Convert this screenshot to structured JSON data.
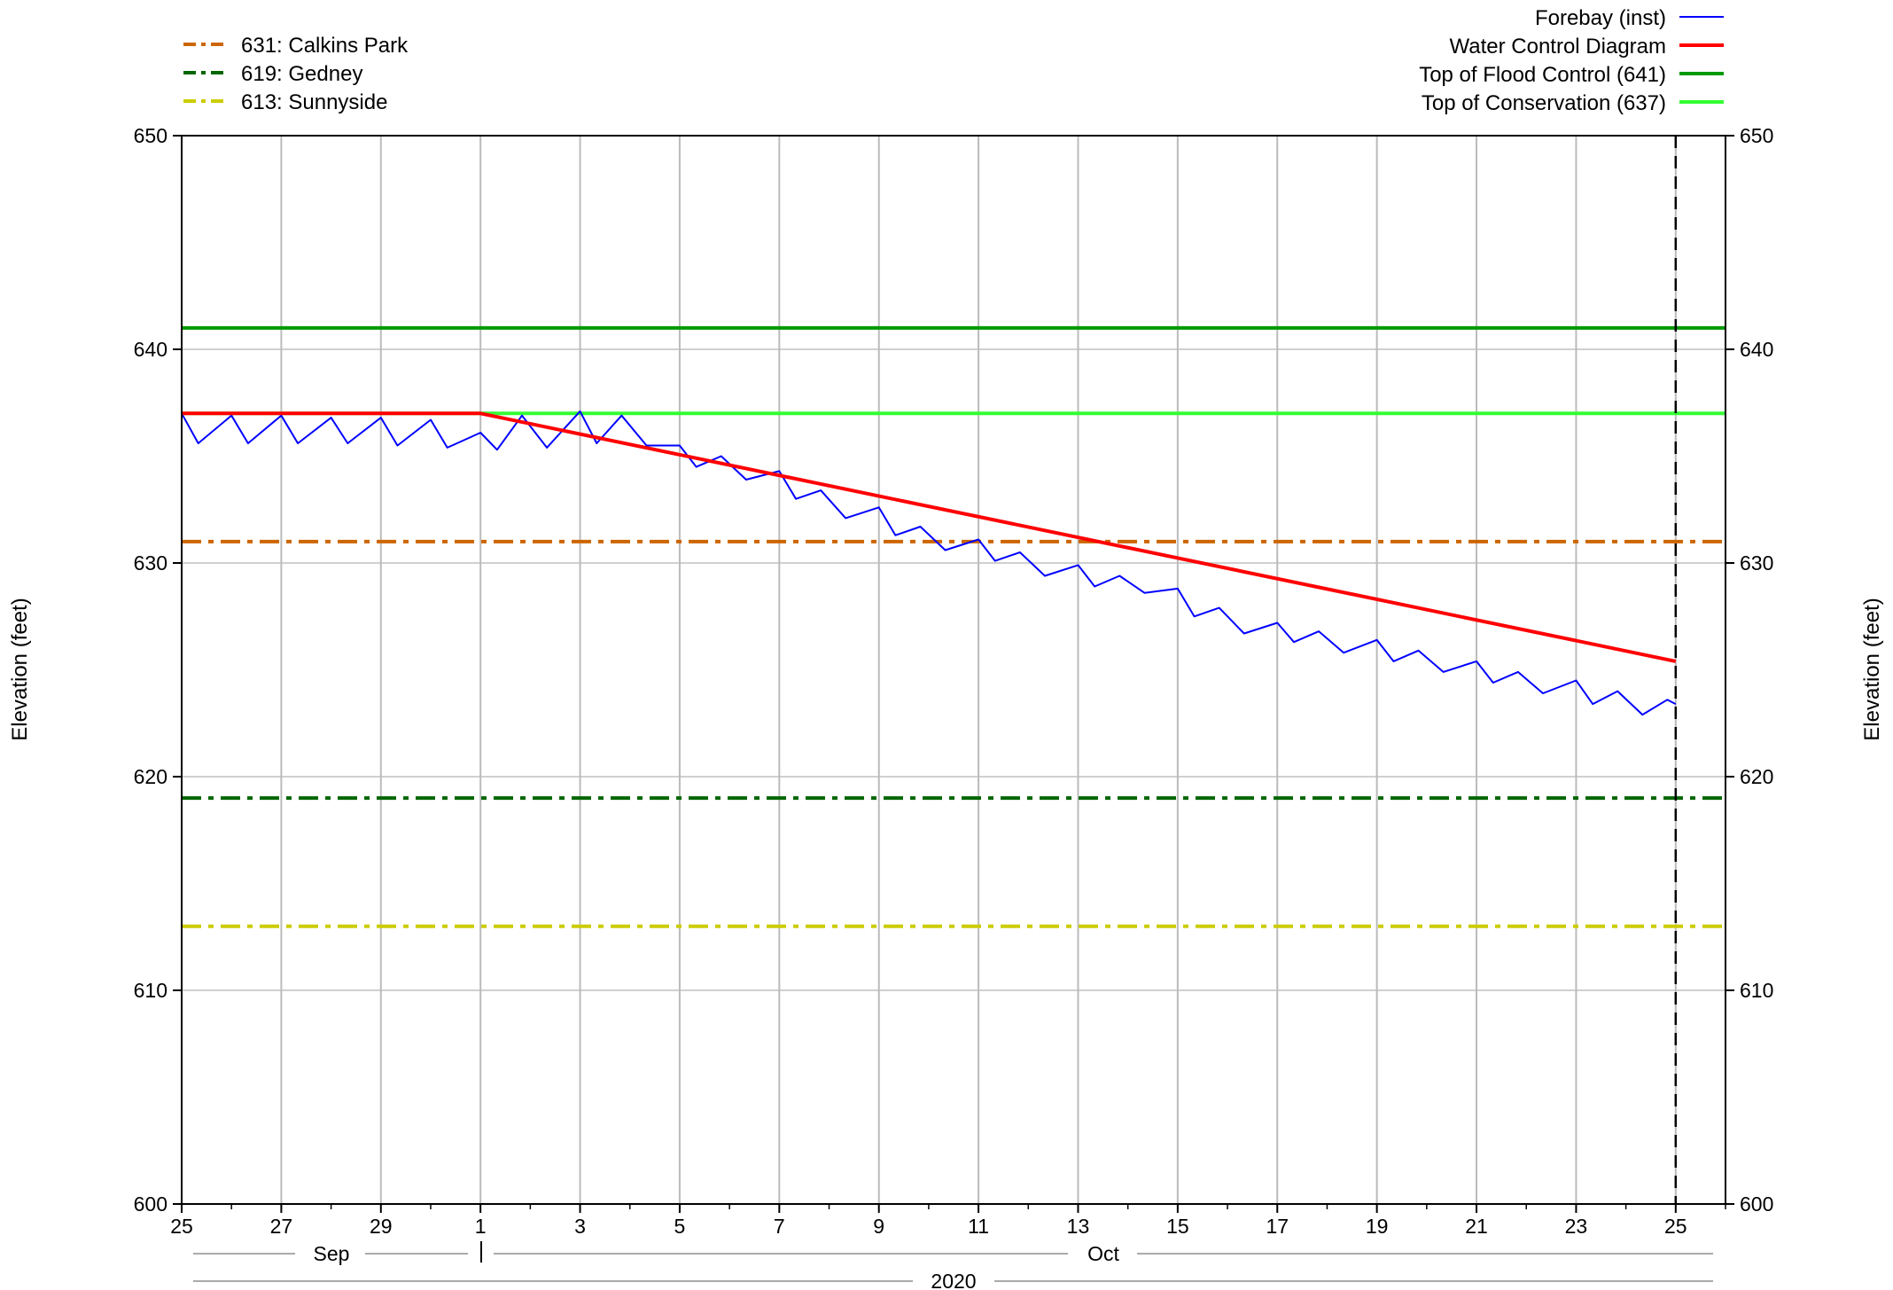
{
  "chart_data": {
    "type": "line",
    "title": "",
    "ylabel_left": "Elevation (feet)",
    "ylabel_right": "Elevation (feet)",
    "ylim": [
      600,
      650
    ],
    "yticks": [
      600,
      610,
      620,
      630,
      640,
      650
    ],
    "x_start": "2020-09-25",
    "x_end": "2020-10-26",
    "x_tick_labels": [
      {
        "date": "2020-09-25",
        "label": "25"
      },
      {
        "date": "2020-09-27",
        "label": "27"
      },
      {
        "date": "2020-09-29",
        "label": "29"
      },
      {
        "date": "2020-10-01",
        "label": "1"
      },
      {
        "date": "2020-10-03",
        "label": "3"
      },
      {
        "date": "2020-10-05",
        "label": "5"
      },
      {
        "date": "2020-10-07",
        "label": "7"
      },
      {
        "date": "2020-10-09",
        "label": "9"
      },
      {
        "date": "2020-10-11",
        "label": "11"
      },
      {
        "date": "2020-10-13",
        "label": "13"
      },
      {
        "date": "2020-10-15",
        "label": "15"
      },
      {
        "date": "2020-10-17",
        "label": "17"
      },
      {
        "date": "2020-10-19",
        "label": "19"
      },
      {
        "date": "2020-10-21",
        "label": "21"
      },
      {
        "date": "2020-10-23",
        "label": "23"
      },
      {
        "date": "2020-10-25",
        "label": "25"
      }
    ],
    "month_labels": [
      "Sep",
      "Oct"
    ],
    "year_label": "2020",
    "grid": true,
    "current_date_marker": "2020-10-25",
    "reference_lines": [
      {
        "name": "631: Calkins Park",
        "value": 631,
        "color": "#cc6600",
        "style": "dash-dot",
        "legend": "top-left"
      },
      {
        "name": "619: Gedney",
        "value": 619,
        "color": "#006600",
        "style": "dash-dot",
        "legend": "top-left"
      },
      {
        "name": "613: Sunnyside",
        "value": 613,
        "color": "#cccc00",
        "style": "dash-dot",
        "legend": "top-left"
      },
      {
        "name": "Top of Flood Control (641)",
        "value": 641,
        "color": "#009900",
        "style": "solid",
        "legend": "top-right"
      },
      {
        "name": "Top of Conservation (637)",
        "value": 637,
        "color": "#33ff33",
        "style": "solid",
        "legend": "top-right"
      }
    ],
    "series": [
      {
        "name": "Forebay (inst)",
        "color": "#0000ff",
        "x": [
          "2020-09-25",
          "2020-09-25 08:00",
          "2020-09-26",
          "2020-09-26 08:00",
          "2020-09-27",
          "2020-09-27 08:00",
          "2020-09-28",
          "2020-09-28 08:00",
          "2020-09-29",
          "2020-09-29 08:00",
          "2020-09-30",
          "2020-09-30 08:00",
          "2020-10-01",
          "2020-10-01 08:00",
          "2020-10-01 20:00",
          "2020-10-02 08:00",
          "2020-10-03",
          "2020-10-03 08:00",
          "2020-10-03 20:00",
          "2020-10-04 08:00",
          "2020-10-05",
          "2020-10-05 08:00",
          "2020-10-05 20:00",
          "2020-10-06 08:00",
          "2020-10-07",
          "2020-10-07 08:00",
          "2020-10-07 20:00",
          "2020-10-08 08:00",
          "2020-10-09",
          "2020-10-09 08:00",
          "2020-10-09 20:00",
          "2020-10-10 08:00",
          "2020-10-11",
          "2020-10-11 08:00",
          "2020-10-11 20:00",
          "2020-10-12 08:00",
          "2020-10-13",
          "2020-10-13 08:00",
          "2020-10-13 20:00",
          "2020-10-14 08:00",
          "2020-10-15",
          "2020-10-15 08:00",
          "2020-10-15 20:00",
          "2020-10-16 08:00",
          "2020-10-17",
          "2020-10-17 08:00",
          "2020-10-17 20:00",
          "2020-10-18 08:00",
          "2020-10-19",
          "2020-10-19 08:00",
          "2020-10-19 20:00",
          "2020-10-20 08:00",
          "2020-10-21",
          "2020-10-21 08:00",
          "2020-10-21 20:00",
          "2020-10-22 08:00",
          "2020-10-23",
          "2020-10-23 08:00",
          "2020-10-23 20:00",
          "2020-10-24 08:00",
          "2020-10-24 20:00",
          "2020-10-25"
        ],
        "y": [
          637.0,
          635.6,
          636.9,
          635.6,
          636.9,
          635.6,
          636.8,
          635.6,
          636.8,
          635.5,
          636.7,
          635.4,
          636.1,
          635.3,
          636.9,
          635.4,
          637.1,
          635.6,
          636.9,
          635.5,
          635.5,
          634.5,
          635.0,
          633.9,
          634.3,
          633.0,
          633.4,
          632.1,
          632.6,
          631.3,
          631.7,
          630.6,
          631.1,
          630.1,
          630.5,
          629.4,
          629.9,
          628.9,
          629.4,
          628.6,
          628.8,
          627.5,
          627.9,
          626.7,
          627.2,
          626.3,
          626.8,
          625.8,
          626.4,
          625.4,
          625.9,
          624.9,
          625.4,
          624.4,
          624.9,
          623.9,
          624.5,
          623.4,
          624.0,
          622.9,
          623.6,
          623.4
        ]
      },
      {
        "name": "Water Control Diagram",
        "color": "#ff0000",
        "x": [
          "2020-09-25",
          "2020-10-01",
          "2020-10-25"
        ],
        "y": [
          637.0,
          637.0,
          625.4
        ]
      }
    ]
  }
}
